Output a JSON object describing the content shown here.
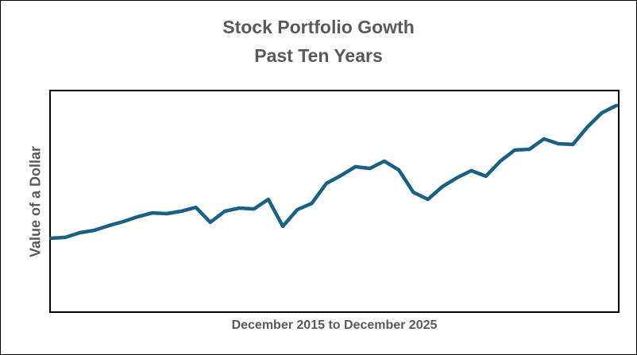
{
  "chart_data": {
    "type": "line",
    "title": "Stock Portfolio Gowth",
    "subtitle": "Past Ten Years",
    "xlabel": "December 2015 to December 2025",
    "ylabel": "Value of a Dollar",
    "ylim": [
      0,
      100
    ],
    "grid": false,
    "legend": "none",
    "color": "#1a6082",
    "x": [
      0,
      1,
      2,
      3,
      4,
      5,
      6,
      7,
      8,
      9,
      10,
      11,
      12,
      13,
      14,
      15,
      16,
      17,
      18,
      19,
      20,
      21,
      22,
      23,
      24,
      25,
      26,
      27,
      28,
      29,
      30,
      31,
      32,
      33,
      34,
      35,
      36,
      37,
      38,
      39
    ],
    "values": [
      33.2,
      33.6,
      35.7,
      36.8,
      38.9,
      40.7,
      42.9,
      44.6,
      44.3,
      45.4,
      47.1,
      40.4,
      45.4,
      46.8,
      46.4,
      50.7,
      38.6,
      46.1,
      48.9,
      57.9,
      61.4,
      65.4,
      64.6,
      67.9,
      63.9,
      53.9,
      50.7,
      56.4,
      60.4,
      63.6,
      61.1,
      67.9,
      72.9,
      73.2,
      77.9,
      75.7,
      75.4,
      83.2,
      89.6,
      92.9
    ]
  }
}
